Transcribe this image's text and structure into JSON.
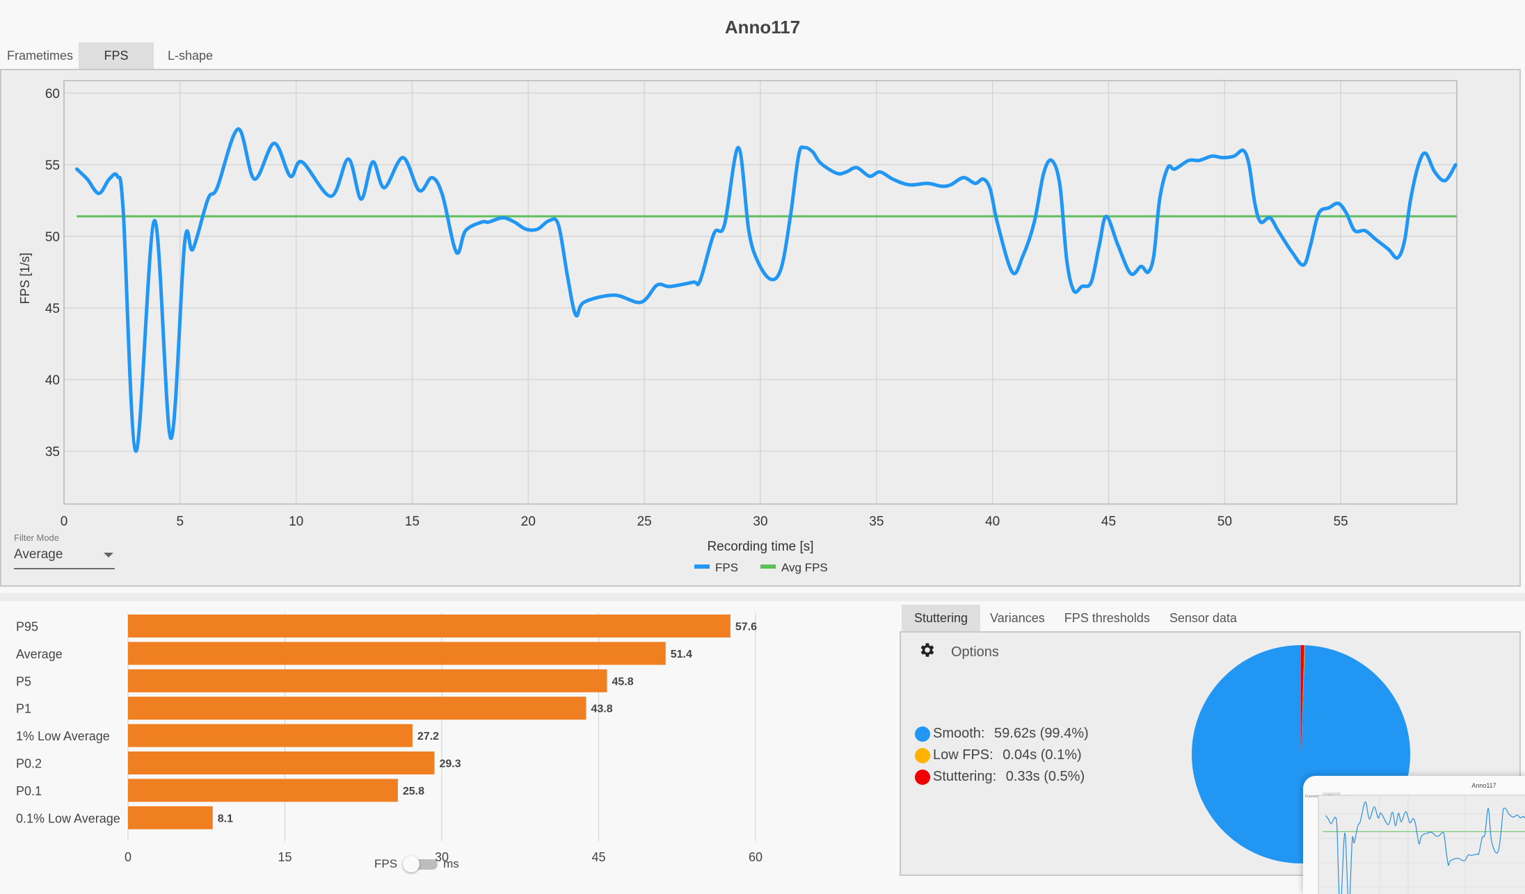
{
  "window": {
    "title": "Anno117"
  },
  "top_tabs": [
    {
      "label": "Frametimes",
      "active": false
    },
    {
      "label": "FPS",
      "active": true
    },
    {
      "label": "L-shape",
      "active": false
    }
  ],
  "filter_mode": {
    "label": "Filter Mode",
    "value": "Average"
  },
  "chart_data": [
    {
      "type": "line",
      "title": "",
      "xlabel": "Recording time [s]",
      "ylabel": "FPS [1/s]",
      "xlim": [
        0,
        60
      ],
      "ylim": [
        31.5,
        61
      ],
      "x_ticks": [
        0,
        5,
        10,
        15,
        20,
        25,
        30,
        35,
        40,
        45,
        50,
        55
      ],
      "y_ticks": [
        35,
        40,
        45,
        50,
        55,
        60
      ],
      "grid": true,
      "legend": {
        "placement": "bottom-center",
        "entries": [
          "FPS",
          "Avg FPS"
        ]
      },
      "series": [
        {
          "name": "FPS",
          "color": "#2196f3",
          "points": [
            [
              0.55,
              54.7
            ],
            [
              1.0,
              54.0
            ],
            [
              1.5,
              53.0
            ],
            [
              1.95,
              54.0
            ],
            [
              2.3,
              54.2
            ],
            [
              2.55,
              51.8
            ],
            [
              3.1,
              35.0
            ],
            [
              3.9,
              51.1
            ],
            [
              4.6,
              35.9
            ],
            [
              5.2,
              49.6
            ],
            [
              5.55,
              49.1
            ],
            [
              6.2,
              52.6
            ],
            [
              6.6,
              53.4
            ],
            [
              7.5,
              57.5
            ],
            [
              8.2,
              54.0
            ],
            [
              9.05,
              56.5
            ],
            [
              9.75,
              54.2
            ],
            [
              10.25,
              55.2
            ],
            [
              11.5,
              52.8
            ],
            [
              12.25,
              55.4
            ],
            [
              12.8,
              52.6
            ],
            [
              13.3,
              55.2
            ],
            [
              13.8,
              53.4
            ],
            [
              14.6,
              55.5
            ],
            [
              15.3,
              53.2
            ],
            [
              15.85,
              54.1
            ],
            [
              16.3,
              52.9
            ],
            [
              16.9,
              48.9
            ],
            [
              17.3,
              50.4
            ],
            [
              18.0,
              51.0
            ],
            [
              18.3,
              51.0
            ],
            [
              18.9,
              51.3
            ],
            [
              19.4,
              51.0
            ],
            [
              19.9,
              50.5
            ],
            [
              20.4,
              50.5
            ],
            [
              20.9,
              51.1
            ],
            [
              21.3,
              50.8
            ],
            [
              21.7,
              47.1
            ],
            [
              22.05,
              44.5
            ],
            [
              22.4,
              45.4
            ],
            [
              23.7,
              45.9
            ],
            [
              24.85,
              45.4
            ],
            [
              25.55,
              46.6
            ],
            [
              26.1,
              46.5
            ],
            [
              27.1,
              46.8
            ],
            [
              27.4,
              46.9
            ],
            [
              28.0,
              50.2
            ],
            [
              28.45,
              50.8
            ],
            [
              29.05,
              56.2
            ],
            [
              29.5,
              50.4
            ],
            [
              29.9,
              48.2
            ],
            [
              30.45,
              47.0
            ],
            [
              30.9,
              47.8
            ],
            [
              31.3,
              51.5
            ],
            [
              31.65,
              55.7
            ],
            [
              31.9,
              56.2
            ],
            [
              32.25,
              55.9
            ],
            [
              32.6,
              55.1
            ],
            [
              33.3,
              54.4
            ],
            [
              33.7,
              54.5
            ],
            [
              34.15,
              54.8
            ],
            [
              34.7,
              54.2
            ],
            [
              35.15,
              54.5
            ],
            [
              35.7,
              54.0
            ],
            [
              36.4,
              53.6
            ],
            [
              37.2,
              53.7
            ],
            [
              37.8,
              53.5
            ],
            [
              38.2,
              53.6
            ],
            [
              38.75,
              54.1
            ],
            [
              39.25,
              53.7
            ],
            [
              39.6,
              54.0
            ],
            [
              39.9,
              53.3
            ],
            [
              40.2,
              51.0
            ],
            [
              40.85,
              47.5
            ],
            [
              41.3,
              48.6
            ],
            [
              41.8,
              51.0
            ],
            [
              42.2,
              54.4
            ],
            [
              42.55,
              55.3
            ],
            [
              42.9,
              53.6
            ],
            [
              43.2,
              48.3
            ],
            [
              43.5,
              46.2
            ],
            [
              43.85,
              46.5
            ],
            [
              44.25,
              46.8
            ],
            [
              44.6,
              49.4
            ],
            [
              44.9,
              51.4
            ],
            [
              45.4,
              49.4
            ],
            [
              45.95,
              47.4
            ],
            [
              46.4,
              47.9
            ],
            [
              46.7,
              47.5
            ],
            [
              46.95,
              48.7
            ],
            [
              47.2,
              52.6
            ],
            [
              47.55,
              54.8
            ],
            [
              47.85,
              54.7
            ],
            [
              48.45,
              55.3
            ],
            [
              48.9,
              55.3
            ],
            [
              49.45,
              55.6
            ],
            [
              49.9,
              55.5
            ],
            [
              50.4,
              55.6
            ],
            [
              50.8,
              56.0
            ],
            [
              51.05,
              55.0
            ],
            [
              51.3,
              52.3
            ],
            [
              51.55,
              51.0
            ],
            [
              51.95,
              51.3
            ],
            [
              52.3,
              50.4
            ],
            [
              52.9,
              48.9
            ],
            [
              53.4,
              48.0
            ],
            [
              53.7,
              49.4
            ],
            [
              54.05,
              51.6
            ],
            [
              54.5,
              52.0
            ],
            [
              54.9,
              52.3
            ],
            [
              55.25,
              51.6
            ],
            [
              55.6,
              50.4
            ],
            [
              56.05,
              50.4
            ],
            [
              56.5,
              49.8
            ],
            [
              57.05,
              49.1
            ],
            [
              57.45,
              48.5
            ],
            [
              57.75,
              49.7
            ],
            [
              58.0,
              52.5
            ],
            [
              58.35,
              55.0
            ],
            [
              58.65,
              55.8
            ],
            [
              59.05,
              54.5
            ],
            [
              59.5,
              53.9
            ],
            [
              59.95,
              55.0
            ]
          ]
        },
        {
          "name": "Avg FPS",
          "color": "#5cbf5c",
          "constant": 51.4,
          "x_range": [
            0.55,
            60
          ]
        }
      ]
    },
    {
      "type": "bar",
      "orientation": "horizontal",
      "title": "",
      "xlabel": "",
      "ylabel": "",
      "categories": [
        "P95",
        "Average",
        "P5",
        "P1",
        "1% Low Average",
        "P0.2",
        "P0.1",
        "0.1% Low Average"
      ],
      "values": [
        57.6,
        51.4,
        45.8,
        43.8,
        27.2,
        29.3,
        25.8,
        8.1
      ],
      "value_labels": [
        "57.6",
        "51.4",
        "45.8",
        "43.8",
        "27.2",
        "29.3",
        "25.8",
        "8.1"
      ],
      "xlim": [
        0,
        60
      ],
      "x_ticks": [
        0,
        15,
        30,
        45,
        60
      ],
      "grid": true,
      "color": "#f07f22"
    },
    {
      "type": "pie",
      "title": "",
      "categories": [
        "Smooth",
        "Low FPS",
        "Stuttering"
      ],
      "values": [
        99.4,
        0.1,
        0.5
      ],
      "colors": [
        "#2196f3",
        "#ffb300",
        "#f00000"
      ]
    }
  ],
  "unit_toggle": {
    "left_label": "FPS",
    "right_label": "ms",
    "state": "FPS"
  },
  "bottom_tabs": [
    {
      "label": "Stuttering",
      "active": true
    },
    {
      "label": "Variances",
      "active": false
    },
    {
      "label": "FPS thresholds",
      "active": false
    },
    {
      "label": "Sensor data",
      "active": false
    }
  ],
  "stuttering": {
    "options_label": "Options",
    "legend": [
      {
        "name": "Smooth:",
        "value": "59.62s (99.4%)",
        "color": "#2196f3"
      },
      {
        "name": "Low FPS:",
        "value": "0.04s (0.1%)",
        "color": "#ffb300"
      },
      {
        "name": "Stuttering:",
        "value": "0.33s (0.5%)",
        "color": "#f00000"
      }
    ]
  },
  "thumbnail": {
    "title": "Anno117"
  }
}
